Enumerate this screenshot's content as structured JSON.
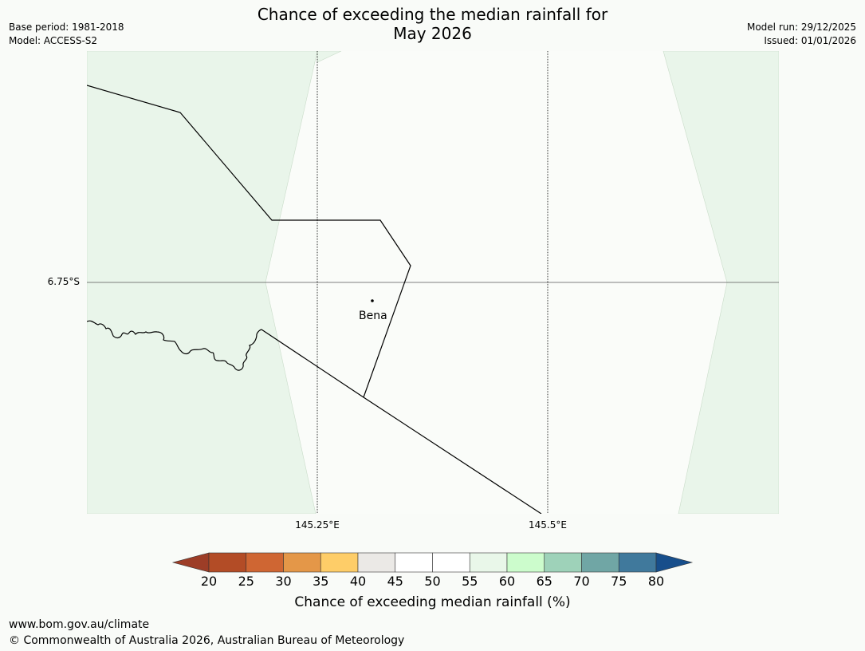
{
  "header": {
    "title_line1": "Chance of exceeding the median rainfall for",
    "title_line2": "May 2026",
    "base_period": "Base period: 1981-2018",
    "model": "Model: ACCESS-S2",
    "model_run": "Model run: 29/12/2025",
    "issued": "Issued: 01/01/2026"
  },
  "map": {
    "lat_label": "6.75°S",
    "lon_labels": [
      "145.25°E",
      "145.5°E"
    ],
    "place": "Bena",
    "colors": {
      "background": "#f9fbf8",
      "category_55_60": "#e9f5ea",
      "category_50_55": "#fafcf9",
      "boundary": "#000000"
    }
  },
  "colorbar": {
    "ticks": [
      "20",
      "25",
      "30",
      "35",
      "40",
      "45",
      "50",
      "55",
      "60",
      "65",
      "70",
      "75",
      "80"
    ],
    "colors": [
      "#9d3d27",
      "#b34c26",
      "#cf6633",
      "#e49748",
      "#fecd68",
      "#ebe9e6",
      "#ffffff",
      "#ffffff",
      "#e9f7e9",
      "#ccfccc",
      "#9ed2b9",
      "#70a6a5",
      "#40799c",
      "#174e8b"
    ],
    "label": "Chance of exceeding median rainfall (%)"
  },
  "footer": {
    "url": "www.bom.gov.au/climate",
    "copyright": "© Commonwealth of Australia 2026, Australian Bureau of Meteorology"
  }
}
